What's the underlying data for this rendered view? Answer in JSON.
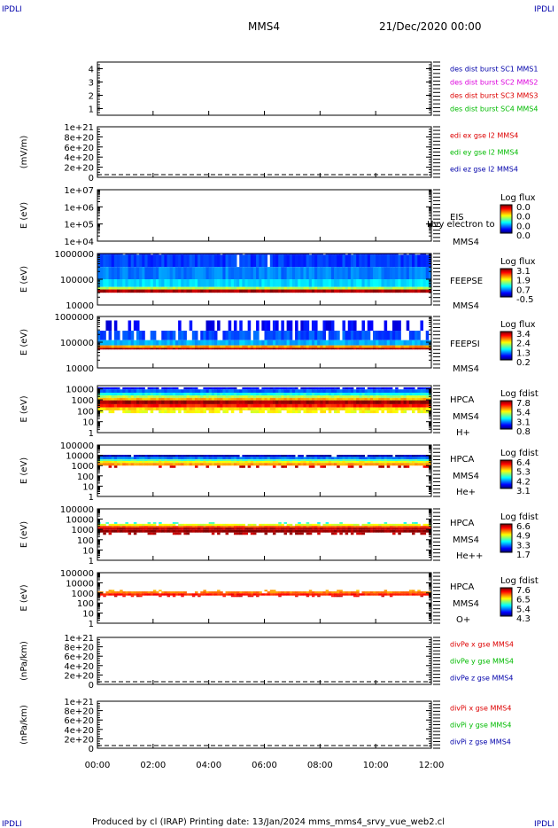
{
  "corner_marks": {
    "top_left": "IPDLI",
    "top_right": "IPDLI",
    "bottom_left": "IPDLI",
    "bottom_right": "IPDLI"
  },
  "header": {
    "mission": "MMS4",
    "date": "21/Dec/2020 00:00"
  },
  "footer": "Produced by cl (IRAP)   Printing date: 13/Jan/2024   mms_mms4_srvy_vue_web2.cl",
  "colors": {
    "red": "#dd0000",
    "green": "#00bb00",
    "blue": "#0000aa",
    "magenta": "#dd00dd",
    "black": "#000000"
  },
  "chart_data": [
    {
      "type": "line",
      "id": "burst",
      "ylabel": "",
      "ylim": [
        0.5,
        4.5
      ],
      "yticks": [
        "1",
        "2",
        "3",
        "4"
      ],
      "legend": [
        {
          "text": "des dist burst SC1 MMS1",
          "color": "#0000aa"
        },
        {
          "text": "des dist burst SC2 MMS2",
          "color": "#dd00dd"
        },
        {
          "text": "des dist burst SC3 MMS3",
          "color": "#dd0000"
        },
        {
          "text": "des dist burst SC4 MMS4",
          "color": "#00bb00"
        }
      ],
      "series": []
    },
    {
      "type": "line",
      "id": "edi",
      "ylabel": "(mV/m)",
      "ylim": [
        0,
        1e+21
      ],
      "yticks": [
        "0",
        "2e+20",
        "4e+20",
        "6e+20",
        "8e+20",
        "1e+21"
      ],
      "legend": [
        {
          "text": "edi ex gse l2 MMS4",
          "color": "#dd0000"
        },
        {
          "text": "edi ey gse l2 MMS4",
          "color": "#00bb00"
        },
        {
          "text": "edi ez gse l2 MMS4",
          "color": "#0000aa"
        }
      ],
      "zero_line": true,
      "series": []
    },
    {
      "type": "heatmap",
      "id": "eis",
      "ylabel": "E (eV)",
      "scale": "log",
      "ylim": [
        10000.0,
        10000000.0
      ],
      "yticks": [
        "1e+04",
        "1e+05",
        "1e+06",
        "1e+07"
      ],
      "side_labels": [
        "EIS",
        "MMS4"
      ],
      "overlay_text": "Hvy electron to",
      "colorbar": {
        "title": "Log flux",
        "ticks": [
          "0.0",
          "0.0",
          "0.0",
          "0.0"
        ]
      },
      "bands": []
    },
    {
      "type": "heatmap",
      "id": "feepse",
      "ylabel": "E (eV)",
      "scale": "log",
      "ylim": [
        10000.0,
        1000000.0
      ],
      "yticks": [
        "10000",
        "100000",
        "1000000"
      ],
      "side_labels": [
        "FEEPSE",
        "MMS4"
      ],
      "colorbar": {
        "title": "Log flux",
        "ticks": [
          "3.1",
          "1.9",
          "0.7",
          "-0.5"
        ]
      },
      "bands": [
        {
          "from": 900000,
          "to": 1000000,
          "level": 0.12,
          "density": 0.85
        },
        {
          "from": 300000,
          "to": 900000,
          "level": 0.18,
          "density": 0.98
        },
        {
          "from": 100000,
          "to": 300000,
          "level": 0.25,
          "density": 1.0
        },
        {
          "from": 50000,
          "to": 100000,
          "level": 0.34,
          "density": 1.0
        },
        {
          "from": 40000,
          "to": 50000,
          "level": 0.55,
          "density": 1.0
        },
        {
          "from": 30000,
          "to": 40000,
          "level": 0.96,
          "density": 1.0
        }
      ]
    },
    {
      "type": "heatmap",
      "id": "feepsi",
      "ylabel": "E (eV)",
      "scale": "log",
      "ylim": [
        10000.0,
        1000000.0
      ],
      "yticks": [
        "10000",
        "100000",
        "1000000"
      ],
      "side_labels": [
        "FEEPSI",
        "MMS4"
      ],
      "colorbar": {
        "title": "Log flux",
        "ticks": [
          "3.4",
          "2.4",
          "1.3",
          "0.2"
        ]
      },
      "bands": [
        {
          "from": 280000,
          "to": 700000,
          "level": 0.12,
          "density": 0.35
        },
        {
          "from": 120000,
          "to": 280000,
          "level": 0.2,
          "density": 0.75
        },
        {
          "from": 75000,
          "to": 120000,
          "level": 0.3,
          "density": 1.0
        },
        {
          "from": 60000,
          "to": 75000,
          "level": 0.72,
          "density": 1.0
        },
        {
          "from": 52000,
          "to": 60000,
          "level": 0.96,
          "density": 1.0
        }
      ]
    },
    {
      "type": "heatmap",
      "id": "hpca_h",
      "ylabel": "E (eV)",
      "scale": "log",
      "ylim": [
        1,
        20000
      ],
      "yticks": [
        "1",
        "10",
        "100",
        "1000",
        "10000"
      ],
      "side_labels": [
        "HPCA",
        "MMS4",
        "H+"
      ],
      "colorbar": {
        "title": "Log fdist",
        "ticks": [
          "7.8",
          "5.4",
          "3.1",
          "0.8"
        ]
      },
      "bands": [
        {
          "from": 9000,
          "to": 14000,
          "level": 0.12,
          "density": 0.9
        },
        {
          "from": 4500,
          "to": 9000,
          "level": 0.22,
          "density": 1.0
        },
        {
          "from": 2500,
          "to": 4500,
          "level": 0.38,
          "density": 1.0
        },
        {
          "from": 1500,
          "to": 2500,
          "level": 0.55,
          "density": 1.0
        },
        {
          "from": 900,
          "to": 1500,
          "level": 0.7,
          "density": 1.0
        },
        {
          "from": 400,
          "to": 900,
          "level": 0.97,
          "density": 1.0
        },
        {
          "from": 200,
          "to": 400,
          "level": 0.85,
          "density": 1.0
        },
        {
          "from": 110,
          "to": 200,
          "level": 0.66,
          "density": 1.0
        },
        {
          "from": 60,
          "to": 110,
          "level": 0.62,
          "density": 0.7
        }
      ]
    },
    {
      "type": "heatmap",
      "id": "hpca_he",
      "ylabel": "E (eV)",
      "scale": "log",
      "ylim": [
        1,
        100000
      ],
      "yticks": [
        "1",
        "10",
        "100",
        "1000",
        "10000",
        "100000"
      ],
      "side_labels": [
        "HPCA",
        "MMS4",
        "He+"
      ],
      "colorbar": {
        "title": "Log fdist",
        "ticks": [
          "6.4",
          "5.3",
          "4.2",
          "3.1"
        ]
      },
      "bands": [
        {
          "from": 7000,
          "to": 11000,
          "level": 0.05,
          "density": 0.95
        },
        {
          "from": 4000,
          "to": 7000,
          "level": 0.25,
          "density": 1.0
        },
        {
          "from": 2800,
          "to": 4000,
          "level": 0.45,
          "density": 1.0
        },
        {
          "from": 1800,
          "to": 2800,
          "level": 0.62,
          "density": 1.0
        },
        {
          "from": 1000,
          "to": 1800,
          "level": 0.72,
          "density": 1.0
        },
        {
          "from": 600,
          "to": 1000,
          "level": 0.92,
          "density": 0.25
        }
      ]
    },
    {
      "type": "heatmap",
      "id": "hpca_hepp",
      "ylabel": "E (eV)",
      "scale": "log",
      "ylim": [
        1,
        100000
      ],
      "yticks": [
        "1",
        "10",
        "100",
        "1000",
        "10000",
        "100000"
      ],
      "side_labels": [
        "HPCA",
        "MMS4",
        "He++"
      ],
      "colorbar": {
        "title": "Log fdist",
        "ticks": [
          "6.6",
          "4.9",
          "3.3",
          "1.7"
        ]
      },
      "bands": [
        {
          "from": 3500,
          "to": 5000,
          "level": 0.4,
          "density": 0.15
        },
        {
          "from": 2200,
          "to": 3500,
          "level": 0.6,
          "density": 0.9
        },
        {
          "from": 1500,
          "to": 2200,
          "level": 0.8,
          "density": 1.0
        },
        {
          "from": 900,
          "to": 1500,
          "level": 0.95,
          "density": 1.0
        },
        {
          "from": 500,
          "to": 900,
          "level": 0.98,
          "density": 1.0
        },
        {
          "from": 300,
          "to": 500,
          "level": 0.95,
          "density": 0.35
        }
      ]
    },
    {
      "type": "heatmap",
      "id": "hpca_o",
      "ylabel": "E (eV)",
      "scale": "log",
      "ylim": [
        1,
        100000
      ],
      "yticks": [
        "1",
        "10",
        "100",
        "1000",
        "10000",
        "100000"
      ],
      "side_labels": [
        "HPCA",
        "MMS4",
        "O+"
      ],
      "colorbar": {
        "title": "Log fdist",
        "ticks": [
          "7.6",
          "6.5",
          "5.4",
          "4.3"
        ]
      },
      "bands": [
        {
          "from": 1400,
          "to": 2000,
          "level": 0.7,
          "density": 0.2
        },
        {
          "from": 900,
          "to": 1400,
          "level": 0.75,
          "density": 0.9
        },
        {
          "from": 550,
          "to": 900,
          "level": 0.85,
          "density": 1.0
        },
        {
          "from": 400,
          "to": 550,
          "level": 0.9,
          "density": 0.3
        }
      ]
    },
    {
      "type": "line",
      "id": "divpe",
      "ylabel": "(nPa/km)",
      "ylim": [
        0,
        1e+21
      ],
      "yticks": [
        "0",
        "2e+20",
        "4e+20",
        "6e+20",
        "8e+20",
        "1e+21"
      ],
      "legend": [
        {
          "text": "divPe x gse MMS4",
          "color": "#dd0000"
        },
        {
          "text": "divPe y gse MMS4",
          "color": "#00bb00"
        },
        {
          "text": "divPe z gse MMS4",
          "color": "#0000aa"
        }
      ],
      "zero_line": true,
      "series": []
    },
    {
      "type": "line",
      "id": "divpi",
      "ylabel": "(nPa/km)",
      "ylim": [
        0,
        1e+21
      ],
      "yticks": [
        "0",
        "2e+20",
        "4e+20",
        "6e+20",
        "8e+20",
        "1e+21"
      ],
      "legend": [
        {
          "text": "divPi x gse MMS4",
          "color": "#dd0000"
        },
        {
          "text": "divPi y gse MMS4",
          "color": "#00bb00"
        },
        {
          "text": "divPi z gse MMS4",
          "color": "#0000aa"
        }
      ],
      "zero_line": true,
      "series": []
    }
  ],
  "time_axis": {
    "ticks": [
      "00:00",
      "02:00",
      "04:00",
      "06:00",
      "08:00",
      "10:00",
      "12:00"
    ],
    "range": [
      "00:00",
      "12:00"
    ]
  }
}
